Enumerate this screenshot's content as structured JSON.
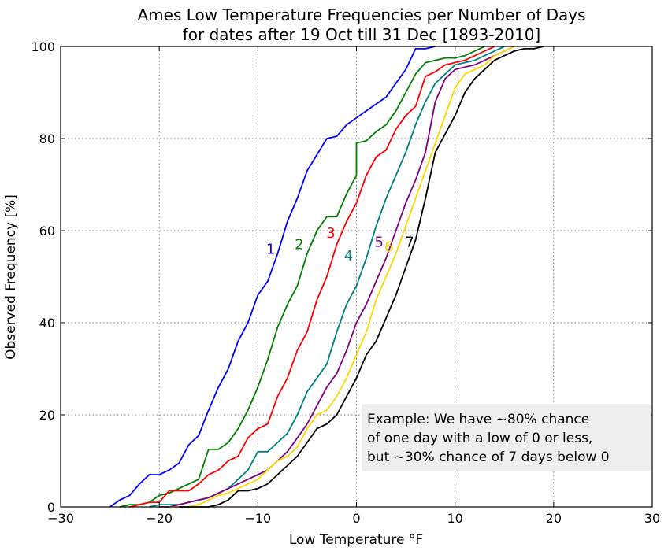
{
  "chart_data": {
    "type": "line",
    "title_line1": "Ames Low Temperature Frequencies per Number of Days",
    "title_line2": "for dates after 19 Oct till 31 Dec [1893-2010]",
    "xlabel": "Low Temperature °F",
    "ylabel": "Observed Frequency [%]",
    "xlim": [
      -30,
      30
    ],
    "ylim": [
      0,
      100
    ],
    "xticks": [
      -30,
      -20,
      -10,
      0,
      10,
      20,
      30
    ],
    "yticks": [
      0,
      20,
      40,
      60,
      80,
      100
    ],
    "x_tick_labels": [
      "−30",
      "−20",
      "−10",
      "0",
      "10",
      "20",
      "30"
    ],
    "y_tick_labels": [
      "0",
      "20",
      "40",
      "60",
      "80",
      "100"
    ],
    "grid": true,
    "annotation": {
      "lines": [
        "Example: We have ~80% chance",
        "of one day with a low of 0 or less,",
        "but ~30% chance of 7 days below 0"
      ],
      "background": "#eeeeee"
    },
    "series": [
      {
        "name": "1",
        "color": "#0000ff",
        "label_x": -8.7,
        "label_y": 55,
        "points": [
          [
            -25,
            0
          ],
          [
            -24,
            1.5
          ],
          [
            -23,
            2.5
          ],
          [
            -22,
            5
          ],
          [
            -21,
            7
          ],
          [
            -20,
            7
          ],
          [
            -19,
            8
          ],
          [
            -18,
            9.5
          ],
          [
            -17,
            13.5
          ],
          [
            -16,
            15.5
          ],
          [
            -15,
            21
          ],
          [
            -14,
            26
          ],
          [
            -13,
            30
          ],
          [
            -12,
            36
          ],
          [
            -11,
            40
          ],
          [
            -10,
            46
          ],
          [
            -9,
            49
          ],
          [
            -8,
            55
          ],
          [
            -7,
            62
          ],
          [
            -6,
            67
          ],
          [
            -5,
            73
          ],
          [
            -4,
            76.5
          ],
          [
            -3,
            80
          ],
          [
            -2,
            80.5
          ],
          [
            -1,
            83
          ],
          [
            0,
            84.5
          ],
          [
            1,
            86
          ],
          [
            2,
            87.5
          ],
          [
            3,
            89
          ],
          [
            4,
            92
          ],
          [
            5,
            95
          ],
          [
            6,
            99.5
          ],
          [
            7,
            99.5
          ],
          [
            8,
            100
          ]
        ]
      },
      {
        "name": "2",
        "color": "#008000",
        "label_x": -5.8,
        "label_y": 56,
        "points": [
          [
            -24,
            0
          ],
          [
            -23,
            0.5
          ],
          [
            -22,
            0.5
          ],
          [
            -21,
            1
          ],
          [
            -20,
            2.5
          ],
          [
            -19,
            3
          ],
          [
            -18,
            4
          ],
          [
            -17,
            5
          ],
          [
            -16,
            6
          ],
          [
            -15,
            12.5
          ],
          [
            -14,
            12.5
          ],
          [
            -13,
            14
          ],
          [
            -12,
            17
          ],
          [
            -11,
            21
          ],
          [
            -10,
            26
          ],
          [
            -9,
            32
          ],
          [
            -8,
            39
          ],
          [
            -7,
            44
          ],
          [
            -6,
            48
          ],
          [
            -5,
            55
          ],
          [
            -4,
            60
          ],
          [
            -3,
            63
          ],
          [
            -2,
            63
          ],
          [
            -1,
            68
          ],
          [
            0,
            72
          ],
          [
            0,
            79
          ],
          [
            1,
            79.5
          ],
          [
            2,
            81.5
          ],
          [
            3,
            83
          ],
          [
            4,
            86
          ],
          [
            5,
            90
          ],
          [
            6,
            94
          ],
          [
            7,
            96.5
          ],
          [
            8,
            97
          ],
          [
            9,
            97.5
          ],
          [
            10,
            97.5
          ],
          [
            11,
            98
          ],
          [
            12,
            99
          ],
          [
            13,
            100
          ]
        ]
      },
      {
        "name": "3",
        "color": "#ff0000",
        "label_x": -2.6,
        "label_y": 58.5,
        "points": [
          [
            -23,
            0
          ],
          [
            -22,
            0.5
          ],
          [
            -21,
            1
          ],
          [
            -20,
            1
          ],
          [
            -19,
            3.5
          ],
          [
            -18,
            3.5
          ],
          [
            -17,
            3.5
          ],
          [
            -16,
            5
          ],
          [
            -15,
            7
          ],
          [
            -14,
            8
          ],
          [
            -13,
            10
          ],
          [
            -12,
            11
          ],
          [
            -11,
            15
          ],
          [
            -10,
            17
          ],
          [
            -9,
            18
          ],
          [
            -8,
            24
          ],
          [
            -7,
            28
          ],
          [
            -6,
            34
          ],
          [
            -5,
            38
          ],
          [
            -4,
            45
          ],
          [
            -3,
            50
          ],
          [
            -2,
            57
          ],
          [
            -1,
            62
          ],
          [
            0,
            66
          ],
          [
            1,
            72
          ],
          [
            2,
            76
          ],
          [
            3,
            77.5
          ],
          [
            4,
            82
          ],
          [
            5,
            85
          ],
          [
            6,
            87
          ],
          [
            7,
            93.5
          ],
          [
            8,
            94.5
          ],
          [
            9,
            96
          ],
          [
            10,
            96.5
          ],
          [
            11,
            97
          ],
          [
            12,
            98
          ],
          [
            13,
            99
          ],
          [
            14,
            100
          ]
        ]
      },
      {
        "name": "4",
        "color": "#008080",
        "label_x": -0.8,
        "label_y": 53.5,
        "points": [
          [
            -21,
            0
          ],
          [
            -20,
            0.5
          ],
          [
            -19,
            0.5
          ],
          [
            -18,
            0.5
          ],
          [
            -17,
            1
          ],
          [
            -16,
            1.5
          ],
          [
            -15,
            2
          ],
          [
            -14,
            3
          ],
          [
            -13,
            4
          ],
          [
            -12,
            6
          ],
          [
            -11,
            8
          ],
          [
            -10,
            12
          ],
          [
            -9,
            12
          ],
          [
            -8,
            14
          ],
          [
            -7,
            16
          ],
          [
            -6,
            20
          ],
          [
            -5,
            25
          ],
          [
            -4,
            28
          ],
          [
            -3,
            31
          ],
          [
            -2,
            38
          ],
          [
            -1,
            44
          ],
          [
            0,
            48
          ],
          [
            1,
            54
          ],
          [
            2,
            61
          ],
          [
            3,
            67
          ],
          [
            4,
            72
          ],
          [
            5,
            77
          ],
          [
            6,
            83
          ],
          [
            7,
            88
          ],
          [
            8,
            92
          ],
          [
            9,
            94
          ],
          [
            10,
            96
          ],
          [
            11,
            96.5
          ],
          [
            12,
            97
          ],
          [
            13,
            98
          ],
          [
            14,
            99
          ],
          [
            15,
            100
          ]
        ]
      },
      {
        "name": "5",
        "color": "#800080",
        "label_x": 2.3,
        "label_y": 56.5,
        "points": [
          [
            -20,
            0
          ],
          [
            -19,
            0
          ],
          [
            -18,
            0.5
          ],
          [
            -17,
            1
          ],
          [
            -16,
            1.5
          ],
          [
            -15,
            2
          ],
          [
            -14,
            3
          ],
          [
            -13,
            4
          ],
          [
            -12,
            5
          ],
          [
            -11,
            6
          ],
          [
            -10,
            7
          ],
          [
            -9,
            8
          ],
          [
            -8,
            10
          ],
          [
            -7,
            12
          ],
          [
            -6,
            15
          ],
          [
            -5,
            18
          ],
          [
            -4,
            22
          ],
          [
            -3,
            26
          ],
          [
            -2,
            29
          ],
          [
            -1,
            34
          ],
          [
            0,
            40
          ],
          [
            1,
            44
          ],
          [
            2,
            49
          ],
          [
            3,
            54
          ],
          [
            4,
            60
          ],
          [
            5,
            66
          ],
          [
            6,
            71
          ],
          [
            7,
            77
          ],
          [
            8,
            88
          ],
          [
            9,
            93
          ],
          [
            10,
            95
          ],
          [
            11,
            95.5
          ],
          [
            12,
            96
          ],
          [
            13,
            97
          ],
          [
            14,
            98
          ],
          [
            15,
            99
          ],
          [
            16,
            100
          ]
        ]
      },
      {
        "name": "6",
        "color": "#ffd700",
        "label_x": 3.3,
        "label_y": 55.5,
        "points": [
          [
            -19,
            0
          ],
          [
            -18,
            0
          ],
          [
            -17,
            0
          ],
          [
            -16,
            0.5
          ],
          [
            -15,
            1.5
          ],
          [
            -14,
            2.5
          ],
          [
            -13,
            3
          ],
          [
            -12,
            4
          ],
          [
            -11,
            5
          ],
          [
            -10,
            6
          ],
          [
            -9,
            8
          ],
          [
            -8,
            10
          ],
          [
            -7,
            11
          ],
          [
            -6,
            13
          ],
          [
            -5,
            17
          ],
          [
            -4,
            20
          ],
          [
            -3,
            21
          ],
          [
            -2,
            24
          ],
          [
            -1,
            28
          ],
          [
            0,
            33
          ],
          [
            1,
            38
          ],
          [
            2,
            45
          ],
          [
            3,
            50
          ],
          [
            4,
            55
          ],
          [
            5,
            61
          ],
          [
            6,
            67
          ],
          [
            7,
            73
          ],
          [
            8,
            79
          ],
          [
            9,
            85
          ],
          [
            10,
            91
          ],
          [
            11,
            94
          ],
          [
            12,
            95
          ],
          [
            13,
            96
          ],
          [
            14,
            98
          ],
          [
            15,
            99
          ],
          [
            16,
            100
          ]
        ]
      },
      {
        "name": "7",
        "color": "#000000",
        "label_x": 5.4,
        "label_y": 56.5,
        "points": [
          [
            -18,
            0
          ],
          [
            -17,
            0
          ],
          [
            -16,
            0
          ],
          [
            -15,
            0
          ],
          [
            -14,
            0.5
          ],
          [
            -13,
            1.5
          ],
          [
            -12,
            3.5
          ],
          [
            -11,
            3.5
          ],
          [
            -10,
            4
          ],
          [
            -9,
            5
          ],
          [
            -8,
            7
          ],
          [
            -7,
            9
          ],
          [
            -6,
            11
          ],
          [
            -5,
            14
          ],
          [
            -4,
            17
          ],
          [
            -3,
            18
          ],
          [
            -2,
            20
          ],
          [
            -1,
            24
          ],
          [
            0,
            28
          ],
          [
            1,
            33
          ],
          [
            2,
            36
          ],
          [
            3,
            41
          ],
          [
            4,
            46
          ],
          [
            5,
            52
          ],
          [
            6,
            58
          ],
          [
            7,
            67
          ],
          [
            8,
            77
          ],
          [
            9,
            81
          ],
          [
            10,
            85
          ],
          [
            11,
            90
          ],
          [
            12,
            93
          ],
          [
            13,
            95
          ],
          [
            14,
            97
          ],
          [
            15,
            98
          ],
          [
            16,
            99
          ],
          [
            17,
            99.5
          ],
          [
            18,
            99.5
          ],
          [
            19,
            100
          ]
        ]
      }
    ]
  }
}
